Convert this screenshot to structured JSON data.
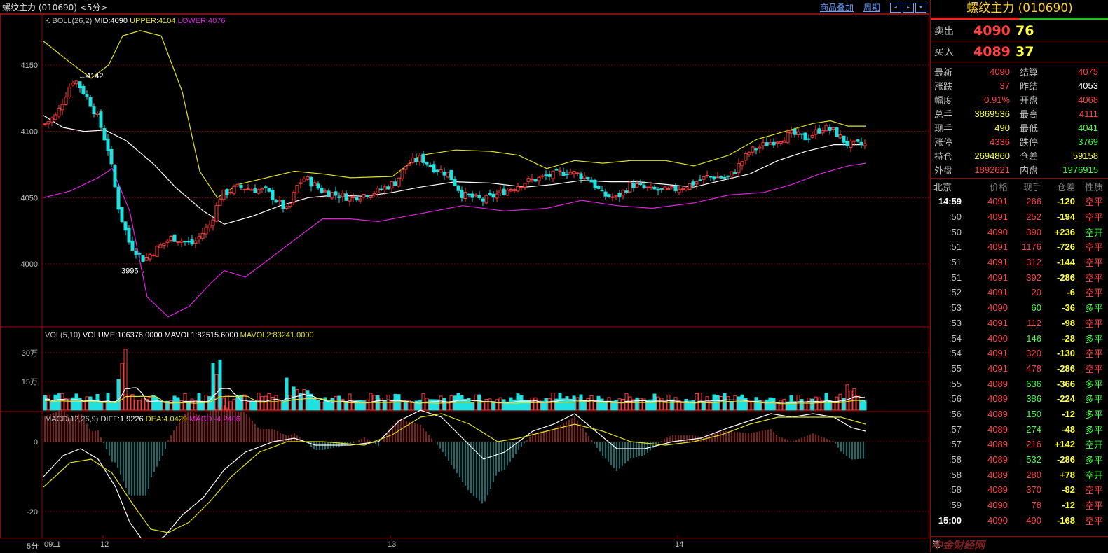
{
  "window": {
    "title": "螺纹主力 (010690) <5分>",
    "links": [
      "商品叠加",
      "周期"
    ],
    "nav_icons": [
      "prev-icon",
      "next-icon",
      "zoom-icon"
    ]
  },
  "kline": {
    "indicator_label": "K BOLL(26,2)",
    "mid": "MID:4090",
    "upper": "UPPER:4104",
    "lower": "LOWER:4076",
    "price_ticks": [
      "4150",
      "4100",
      "4050",
      "4000"
    ],
    "annotations": {
      "high": "4142",
      "low": "3995"
    }
  },
  "volume": {
    "label": "VOL(5,10)",
    "volume": "VOLUME:106376.0000",
    "mavol1": "MAVOL1:82515.6000",
    "mavol2": "MAVOL2:83241.0000",
    "ticks": [
      "30万",
      "15万"
    ]
  },
  "macd": {
    "label": "MACD(12,26,9)",
    "diff": "DIFF:1.9226",
    "dea": "DEA:4.0429",
    "macd": "MACD:-4.2406",
    "ticks": [
      "0",
      "-20"
    ]
  },
  "xaxis": {
    "period": "5分",
    "labels": [
      "0911",
      "12",
      "13",
      "14"
    ]
  },
  "quote": {
    "name": "螺纹主力 (010690)",
    "ask": {
      "label": "卖出",
      "price": "4090",
      "vol": "76"
    },
    "bid": {
      "label": "买入",
      "price": "4089",
      "vol": "37"
    },
    "stats": [
      {
        "k": "最新",
        "v": "4090",
        "c": "#ff4040",
        "k2": "结算",
        "v2": "4075",
        "c2": "#ff4040"
      },
      {
        "k": "涨跌",
        "v": "37",
        "c": "#ff4040",
        "k2": "昨结",
        "v2": "4053",
        "c2": "#ffffff"
      },
      {
        "k": "幅度",
        "v": "0.91%",
        "c": "#ff4040",
        "k2": "开盘",
        "v2": "4068",
        "c2": "#ff4040"
      },
      {
        "k": "总手",
        "v": "3869536",
        "c": "#ffff40",
        "k2": "最高",
        "v2": "4111",
        "c2": "#ff4040"
      },
      {
        "k": "现手",
        "v": "490",
        "c": "#ffff40",
        "k2": "最低",
        "v2": "4041",
        "c2": "#40ff40"
      },
      {
        "k": "涨停",
        "v": "4336",
        "c": "#ff4040",
        "k2": "跌停",
        "v2": "3769",
        "c2": "#40ff40"
      },
      {
        "k": "持仓",
        "v": "2694860",
        "c": "#ffff40",
        "k2": "仓差",
        "v2": "59158",
        "c2": "#ffff40"
      },
      {
        "k": "外盘",
        "v": "1892621",
        "c": "#ff4040",
        "k2": "内盘",
        "v2": "1976915",
        "c2": "#40ff40"
      }
    ],
    "tick_headers": [
      "北京",
      "价格",
      "现手",
      "仓差",
      "性质"
    ],
    "ticks": [
      {
        "t": "14:59",
        "p": "4091",
        "h": "266",
        "o": "-120",
        "n": "空平"
      },
      {
        "t": ":50",
        "p": "4091",
        "h": "252",
        "o": "-194",
        "n": "空平"
      },
      {
        "t": ":50",
        "p": "4090",
        "h": "390",
        "o": "+236",
        "n": "空开"
      },
      {
        "t": ":51",
        "p": "4091",
        "h": "1176",
        "o": "-726",
        "n": "空平"
      },
      {
        "t": ":51",
        "p": "4091",
        "h": "312",
        "o": "-144",
        "n": "空平"
      },
      {
        "t": ":51",
        "p": "4091",
        "h": "392",
        "o": "-286",
        "n": "空平"
      },
      {
        "t": ":52",
        "p": "4091",
        "h": "20",
        "o": "-6",
        "n": "空平"
      },
      {
        "t": ":53",
        "p": "4090",
        "h": "60",
        "o": "-36",
        "n": "多平"
      },
      {
        "t": ":53",
        "p": "4091",
        "h": "112",
        "o": "-98",
        "n": "空平"
      },
      {
        "t": ":54",
        "p": "4090",
        "h": "146",
        "o": "-28",
        "n": "多平"
      },
      {
        "t": ":54",
        "p": "4091",
        "h": "320",
        "o": "-130",
        "n": "空平"
      },
      {
        "t": ":55",
        "p": "4091",
        "h": "478",
        "o": "-286",
        "n": "空平"
      },
      {
        "t": ":55",
        "p": "4089",
        "h": "636",
        "o": "-366",
        "n": "多平"
      },
      {
        "t": ":56",
        "p": "4089",
        "h": "386",
        "o": "-224",
        "n": "多平"
      },
      {
        "t": ":56",
        "p": "4089",
        "h": "150",
        "o": "-12",
        "n": "多平"
      },
      {
        "t": ":57",
        "p": "4089",
        "h": "274",
        "o": "-48",
        "n": "多平"
      },
      {
        "t": ":57",
        "p": "4089",
        "h": "216",
        "o": "+142",
        "n": "空开"
      },
      {
        "t": ":58",
        "p": "4089",
        "h": "532",
        "o": "-286",
        "n": "多平"
      },
      {
        "t": ":58",
        "p": "4089",
        "h": "280",
        "o": "+78",
        "n": "空开"
      },
      {
        "t": ":58",
        "p": "4089",
        "h": "370",
        "o": "-82",
        "n": "空平"
      },
      {
        "t": ":59",
        "p": "4090",
        "h": "78",
        "o": "-12",
        "n": "空平"
      },
      {
        "t": "15:00",
        "p": "4090",
        "h": "490",
        "o": "-168",
        "n": "空平"
      }
    ],
    "bottom_tab": "笔",
    "watermark": "中金财经网"
  },
  "colors": {
    "up": "#ff3b3b",
    "down": "#20e0e0",
    "mid": "#ffffff",
    "upper": "#e0e020",
    "lower": "#e020e0",
    "grid": "#7a0000"
  }
}
